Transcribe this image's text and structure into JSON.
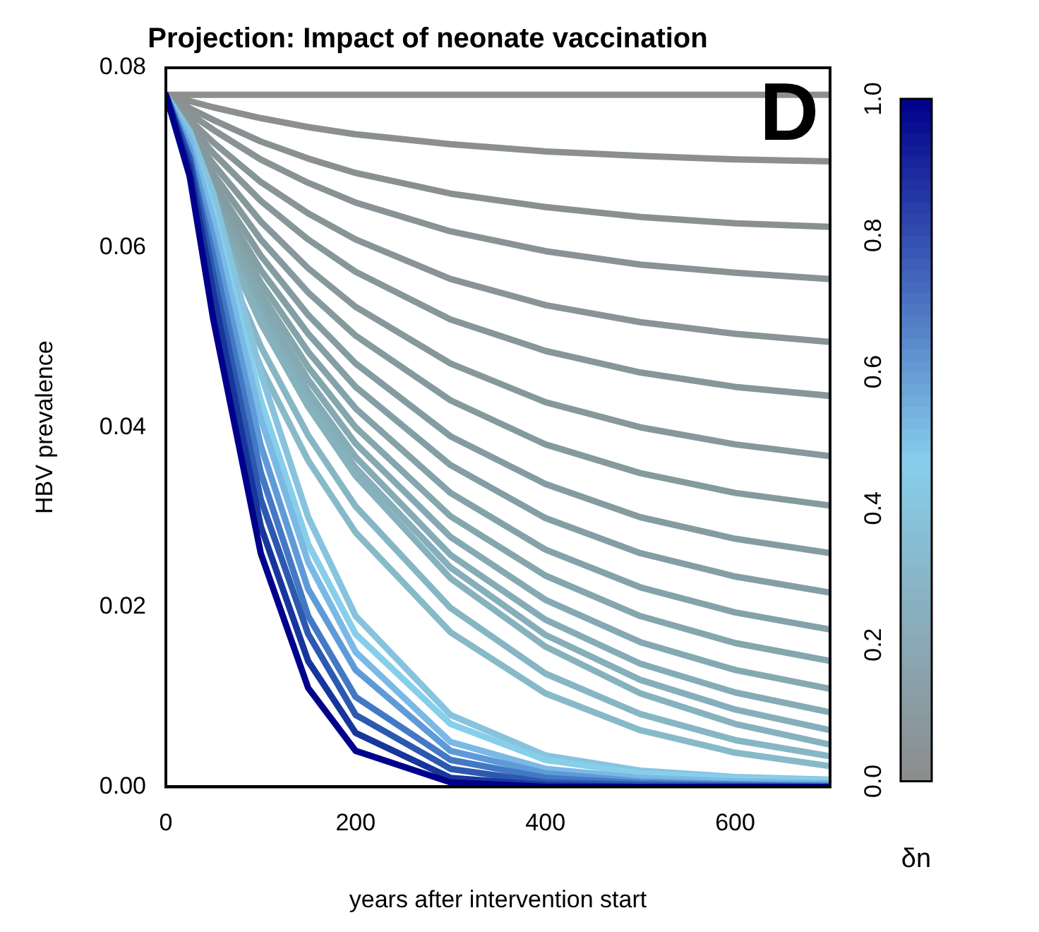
{
  "chart_data": {
    "type": "line",
    "title": "Projection: Impact of neonate vaccination",
    "xlabel": "years after intervention start",
    "ylabel": "HBV prevalence",
    "clabel": "δn",
    "clim": [
      0,
      1
    ],
    "cticks": [
      {
        "value": 0,
        "label": "0.0"
      },
      {
        "value": 0.2,
        "label": "0.2"
      },
      {
        "value": 0.4,
        "label": "0.4"
      },
      {
        "value": 0.6,
        "label": "0.6"
      },
      {
        "value": 0.8,
        "label": "0.8"
      },
      {
        "value": 1,
        "label": "1.0"
      }
    ],
    "annotations": [
      "D"
    ],
    "x": [
      0,
      25,
      50,
      100,
      150,
      200,
      300,
      400,
      500,
      600,
      700
    ],
    "xlim": [
      0,
      700
    ],
    "xticks": [
      0,
      200,
      400,
      600
    ],
    "ylim": [
      0,
      0.08
    ],
    "yticks": [
      {
        "value": 0,
        "label": "0.00"
      },
      {
        "value": 0.02,
        "label": "0.02"
      },
      {
        "value": 0.04,
        "label": "0.04"
      },
      {
        "value": 0.06,
        "label": "0.06"
      },
      {
        "value": 0.08,
        "label": "0.08"
      }
    ],
    "grid": false,
    "legend": false,
    "marker": "none",
    "line_style": "solid",
    "series": [
      {
        "color": "#00008b",
        "values": [
          0.077,
          0.068,
          0.052,
          0.026,
          0.011,
          0.004,
          0.0005,
          0,
          0,
          0,
          0
        ]
      },
      {
        "color": "#17369c",
        "values": [
          0.077,
          0.069,
          0.055,
          0.029,
          0.014,
          0.006,
          0.001,
          0.0002,
          0,
          0,
          0
        ]
      },
      {
        "color": "#2c58b0",
        "values": [
          0.077,
          0.07,
          0.057,
          0.032,
          0.017,
          0.008,
          0.002,
          0.0005,
          0.0002,
          0.0001,
          0
        ]
      },
      {
        "color": "#4278c4",
        "values": [
          0.077,
          0.07,
          0.059,
          0.035,
          0.019,
          0.01,
          0.003,
          0.001,
          0.0004,
          0.0002,
          0.0001
        ]
      },
      {
        "color": "#5e9ad8",
        "values": [
          0.077,
          0.071,
          0.061,
          0.038,
          0.022,
          0.013,
          0.004,
          0.0015,
          0.0006,
          0.0003,
          0.0002
        ]
      },
      {
        "color": "#7ab8e6",
        "values": [
          0.077,
          0.072,
          0.063,
          0.041,
          0.025,
          0.015,
          0.005,
          0.002,
          0.001,
          0.0006,
          0.0004
        ]
      },
      {
        "color": "#87ceeb",
        "values": [
          0.077,
          0.072,
          0.064,
          0.043,
          0.027,
          0.017,
          0.007,
          0.003,
          0.0015,
          0.001,
          0.0007
        ]
      },
      {
        "color": "#87c3de",
        "values": [
          0.077,
          0.073,
          0.066,
          0.046,
          0.03,
          0.019,
          0.008,
          0.0035,
          0.0018,
          0.0011,
          0.0008
        ]
      },
      {
        "color": "#87bac8",
        "values": [
          0.077,
          0.0679,
          0.06,
          0.0467,
          0.0363,
          0.0283,
          0.0172,
          0.0104,
          0.0063,
          0.0038,
          0.0023
        ]
      },
      {
        "color": "#86b6c3",
        "values": [
          0.077,
          0.0688,
          0.0614,
          0.049,
          0.0391,
          0.0312,
          0.0199,
          0.0126,
          0.0081,
          0.0052,
          0.0034
        ]
      },
      {
        "color": "#86b2be",
        "values": [
          0.077,
          0.0697,
          0.0631,
          0.0516,
          0.0423,
          0.0346,
          0.0232,
          0.0156,
          0.0104,
          0.007,
          0.0047
        ]
      },
      {
        "color": "#85afba",
        "values": [
          0.077,
          0.0698,
          0.0634,
          0.0522,
          0.043,
          0.0355,
          0.0244,
          0.0169,
          0.0119,
          0.0086,
          0.0063
        ]
      },
      {
        "color": "#85acb6",
        "values": [
          0.077,
          0.0701,
          0.0638,
          0.0528,
          0.044,
          0.0367,
          0.0258,
          0.0186,
          0.0137,
          0.0105,
          0.0083
        ]
      },
      {
        "color": "#84a9b2",
        "values": [
          0.077,
          0.0703,
          0.0643,
          0.0538,
          0.0453,
          0.0382,
          0.0278,
          0.0208,
          0.0161,
          0.013,
          0.0109
        ]
      },
      {
        "color": "#84a6ad",
        "values": [
          0.077,
          0.0706,
          0.0649,
          0.0549,
          0.0467,
          0.04,
          0.0301,
          0.0235,
          0.019,
          0.016,
          0.014
        ]
      },
      {
        "color": "#83a2a9",
        "values": [
          0.077,
          0.071,
          0.0655,
          0.0561,
          0.0484,
          0.0421,
          0.0327,
          0.0264,
          0.0222,
          0.0194,
          0.0175
        ]
      },
      {
        "color": "#839fa5",
        "values": [
          0.077,
          0.0714,
          0.0663,
          0.0575,
          0.0504,
          0.0445,
          0.0358,
          0.0299,
          0.026,
          0.0234,
          0.0216
        ]
      },
      {
        "color": "#849ca1",
        "values": [
          0.077,
          0.0718,
          0.0672,
          0.0591,
          0.0525,
          0.0471,
          0.039,
          0.0337,
          0.03,
          0.0276,
          0.026
        ]
      },
      {
        "color": "#859a9e",
        "values": [
          0.077,
          0.0724,
          0.0682,
          0.0609,
          0.055,
          0.0502,
          0.043,
          0.0381,
          0.0349,
          0.0327,
          0.0313
        ]
      },
      {
        "color": "#86989b",
        "values": [
          0.077,
          0.0729,
          0.0693,
          0.0629,
          0.0577,
          0.0534,
          0.0471,
          0.0428,
          0.04,
          0.0381,
          0.0368
        ]
      },
      {
        "color": "#879698",
        "values": [
          0.077,
          0.0736,
          0.0705,
          0.0652,
          0.0609,
          0.0573,
          0.052,
          0.0485,
          0.0461,
          0.0445,
          0.0435
        ]
      },
      {
        "color": "#889496",
        "values": [
          0.077,
          0.0742,
          0.0717,
          0.0673,
          0.0638,
          0.0609,
          0.0565,
          0.0536,
          0.0517,
          0.0504,
          0.0495
        ]
      },
      {
        "color": "#899294",
        "values": [
          0.077,
          0.0749,
          0.0731,
          0.0698,
          0.0672,
          0.065,
          0.0618,
          0.0596,
          0.0581,
          0.0572,
          0.0565
        ]
      },
      {
        "color": "#8a9092",
        "values": [
          0.077,
          0.0755,
          0.0742,
          0.0718,
          0.0699,
          0.0683,
          0.066,
          0.0645,
          0.0634,
          0.0627,
          0.0623
        ]
      },
      {
        "color": "#8b8f90",
        "values": [
          0.077,
          0.0763,
          0.0756,
          0.0744,
          0.0734,
          0.0726,
          0.0715,
          0.0707,
          0.0702,
          0.0698,
          0.0696
        ]
      },
      {
        "color": "#8e8e8e",
        "values": [
          0.077,
          0.077,
          0.077,
          0.077,
          0.077,
          0.077,
          0.077,
          0.077,
          0.077,
          0.077,
          0.077
        ]
      }
    ]
  }
}
